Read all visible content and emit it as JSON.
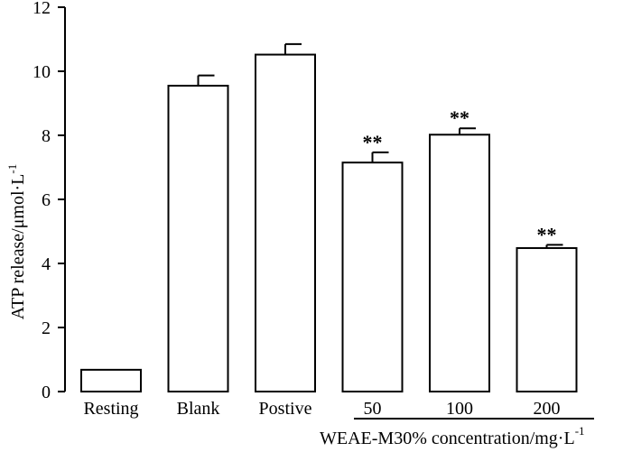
{
  "chart_data": {
    "type": "bar",
    "categories": [
      "Resting",
      "Blank",
      "Postive",
      "50",
      "100",
      "200"
    ],
    "values": [
      0.68,
      9.55,
      10.52,
      7.15,
      8.02,
      4.48
    ],
    "errors": [
      0.0,
      0.32,
      0.33,
      0.32,
      0.2,
      0.1
    ],
    "annotations": [
      "",
      "",
      "",
      "**",
      "**",
      "**"
    ],
    "ylabel": "ATP release/μmol·L",
    "ylabel_superscript": "-1",
    "xlabel": "WEAE-M30% concentration/mg·L",
    "xlabel_superscript": "-1",
    "ylim": [
      0,
      12
    ],
    "yticks": [
      0,
      2,
      4,
      6,
      8,
      10,
      12
    ],
    "grid": false,
    "colors": {
      "bar_fill": "#ffffff",
      "bar_stroke": "#000000",
      "axis": "#000000"
    }
  }
}
